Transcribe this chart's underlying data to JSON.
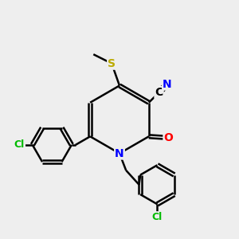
{
  "bg_color": "#eeeeee",
  "atom_colors": {
    "C": "#000000",
    "N": "#0000ff",
    "O": "#ff0000",
    "S": "#bbaa00",
    "Cl": "#00bb00"
  },
  "bond_color": "#000000",
  "bond_width": 1.8,
  "font_size_atom": 10,
  "title": ""
}
